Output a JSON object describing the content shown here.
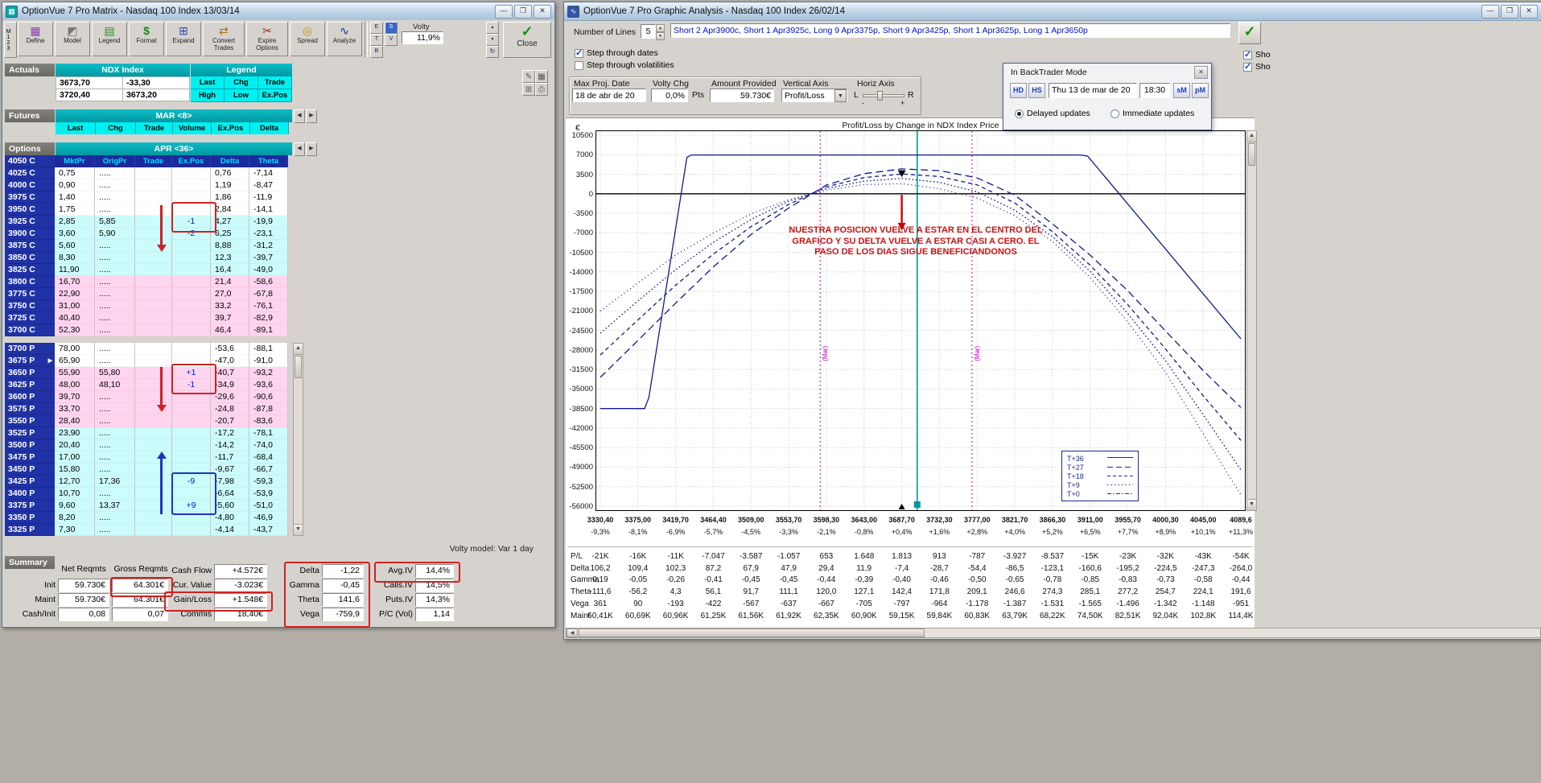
{
  "icons": {
    "define-grid-icon": "▦",
    "model-icon": "◩",
    "legend-icon": "▤",
    "format-icon": "$",
    "expand-icon": "⊞",
    "convert-trades-icon": "⇄",
    "expire-options-icon": "✂",
    "spread-icon": "◎",
    "analyze-icon": "∿",
    "check-icon": "✓",
    "close-x-icon": "✕",
    "minimize-icon": "—",
    "maximize-icon": "❐",
    "left-icon": "◀",
    "right-icon": "▶",
    "up-icon": "▲",
    "down-icon": "▼",
    "pencil-icon": "✎",
    "palette-icon": "▦",
    "calc-icon": "⊞",
    "print-icon": "⎙",
    "refresh-icon": "↻",
    "dropdown-icon": "▼",
    "marker-icon": "▸"
  },
  "matrix": {
    "title": "OptionVue 7 Pro Matrix - Nasdaq 100 Index 13/03/14",
    "toolbar": {
      "buttons": [
        {
          "label": "Define",
          "icon": "define-grid-icon"
        },
        {
          "label": "Model",
          "icon": "model-icon"
        },
        {
          "label": "Legend",
          "icon": "legend-icon"
        },
        {
          "label": "Format",
          "icon": "format-icon"
        },
        {
          "label": "Expand",
          "icon": "expand-icon"
        },
        {
          "label": "Convert Trades",
          "icon": "convert-trades-icon",
          "wide": true
        },
        {
          "label": "Expire Options",
          "icon": "expire-options-icon",
          "wide": true
        },
        {
          "label": "Spread",
          "icon": "spread-icon"
        },
        {
          "label": "Analyze",
          "icon": "analyze-icon"
        }
      ],
      "m123": "M123",
      "mini_letters": [
        "E",
        "T",
        "B"
      ],
      "sv_buttons": [
        "S",
        "V"
      ],
      "volty_label": "Volty",
      "volty_value": "11,9%",
      "close_label": "Close"
    },
    "actuals": {
      "section_label": "Actuals",
      "index_header": "NDX Index",
      "legend_header": "Legend",
      "last": "3673,70",
      "chg": "-33,30",
      "high": "3720,40",
      "low": "3673,20",
      "legend_cells": [
        "Last",
        "Chg",
        "Trade",
        "High",
        "Low",
        "Ex.Pos"
      ]
    },
    "futures": {
      "section_label": "Futures",
      "month": "MAR <8>",
      "columns": [
        "Last",
        "Chg",
        "Trade",
        "Volume",
        "Ex.Pos",
        "Delta"
      ]
    },
    "options": {
      "section_label": "Options",
      "month": "APR <36>",
      "top_strike": "4050 C",
      "columns": [
        "MktPr",
        "OrigPr",
        "Trade",
        "Ex.Pos",
        "Delta",
        "Theta"
      ],
      "calls": [
        {
          "strike": "4025 C",
          "mkt": "0,75",
          "orig": ".....",
          "trade": "",
          "expos": "",
          "delta": "0,76",
          "theta": "-7,14",
          "zone": "w"
        },
        {
          "strike": "4000 C",
          "mkt": "0,90",
          "orig": ".....",
          "trade": "",
          "expos": "",
          "delta": "1,19",
          "theta": "-8,47",
          "zone": "w"
        },
        {
          "strike": "3975 C",
          "mkt": "1,40",
          "orig": ".....",
          "trade": "",
          "expos": "",
          "delta": "1,86",
          "theta": "-11,9",
          "zone": "w"
        },
        {
          "strike": "3950 C",
          "mkt": "1,75",
          "orig": ".....",
          "trade": "",
          "expos": "",
          "delta": "2,84",
          "theta": "-14,1",
          "zone": "w"
        },
        {
          "strike": "3925 C",
          "mkt": "2,85",
          "orig": "5,85",
          "trade": "",
          "expos": "-1",
          "delta": "4,27",
          "theta": "-19,9",
          "zone": "c"
        },
        {
          "strike": "3900 C",
          "mkt": "3,60",
          "orig": "5,90",
          "trade": "",
          "expos": "-2",
          "delta": "6,25",
          "theta": "-23,1",
          "zone": "c"
        },
        {
          "strike": "3875 C",
          "mkt": "5,60",
          "orig": ".....",
          "trade": "",
          "expos": "",
          "delta": "8,88",
          "theta": "-31,2",
          "zone": "c"
        },
        {
          "strike": "3850 C",
          "mkt": "8,30",
          "orig": ".....",
          "trade": "",
          "expos": "",
          "delta": "12,3",
          "theta": "-39,7",
          "zone": "c"
        },
        {
          "strike": "3825 C",
          "mkt": "11,90",
          "orig": ".....",
          "trade": "",
          "expos": "",
          "delta": "16,4",
          "theta": "-49,0",
          "zone": "c"
        },
        {
          "strike": "3800 C",
          "mkt": "16,70",
          "orig": ".....",
          "trade": "",
          "expos": "",
          "delta": "21,4",
          "theta": "-58,6",
          "zone": "p"
        },
        {
          "strike": "3775 C",
          "mkt": "22,90",
          "orig": ".....",
          "trade": "",
          "expos": "",
          "delta": "27,0",
          "theta": "-67,8",
          "zone": "p"
        },
        {
          "strike": "3750 C",
          "mkt": "31,00",
          "orig": ".....",
          "trade": "",
          "expos": "",
          "delta": "33,2",
          "theta": "-76,1",
          "zone": "p"
        },
        {
          "strike": "3725 C",
          "mkt": "40,40",
          "orig": ".....",
          "trade": "",
          "expos": "",
          "delta": "39,7",
          "theta": "-82,9",
          "zone": "p"
        },
        {
          "strike": "3700 C",
          "mkt": "52,30",
          "orig": ".....",
          "trade": "",
          "expos": "",
          "delta": "46,4",
          "theta": "-89,1",
          "zone": "p"
        }
      ],
      "puts": [
        {
          "strike": "3700 P",
          "mkt": "78,00",
          "orig": ".....",
          "trade": "",
          "expos": "",
          "delta": "-53,6",
          "theta": "-88,1",
          "zone": "w"
        },
        {
          "strike": "3675 P",
          "marker": true,
          "mkt": "65,90",
          "orig": ".....",
          "trade": "",
          "expos": "",
          "delta": "-47,0",
          "theta": "-91,0",
          "zone": "w"
        },
        {
          "strike": "3650 P",
          "mkt": "55,90",
          "orig": "55,80",
          "trade": "",
          "expos": "+1",
          "delta": "-40,7",
          "theta": "-93,2",
          "zone": "p"
        },
        {
          "strike": "3625 P",
          "mkt": "48,00",
          "orig": "48,10",
          "trade": "",
          "expos": "-1",
          "delta": "-34,9",
          "theta": "-93,6",
          "zone": "p"
        },
        {
          "strike": "3600 P",
          "mkt": "39,70",
          "orig": ".....",
          "trade": "",
          "expos": "",
          "delta": "-29,6",
          "theta": "-90,6",
          "zone": "p"
        },
        {
          "strike": "3575 P",
          "mkt": "33,70",
          "orig": ".....",
          "trade": "",
          "expos": "",
          "delta": "-24,8",
          "theta": "-87,8",
          "zone": "p"
        },
        {
          "strike": "3550 P",
          "mkt": "28,40",
          "orig": ".....",
          "trade": "",
          "expos": "",
          "delta": "-20,7",
          "theta": "-83,6",
          "zone": "p"
        },
        {
          "strike": "3525 P",
          "mkt": "23,90",
          "orig": ".....",
          "trade": "",
          "expos": "",
          "delta": "-17,2",
          "theta": "-78,1",
          "zone": "c"
        },
        {
          "strike": "3500 P",
          "mkt": "20,40",
          "orig": ".....",
          "trade": "",
          "expos": "",
          "delta": "-14,2",
          "theta": "-74,0",
          "zone": "c"
        },
        {
          "strike": "3475 P",
          "mkt": "17,00",
          "orig": ".....",
          "trade": "",
          "expos": "",
          "delta": "-11,7",
          "theta": "-68,4",
          "zone": "c"
        },
        {
          "strike": "3450 P",
          "mkt": "15,80",
          "orig": ".....",
          "trade": "",
          "expos": "",
          "delta": "-9,67",
          "theta": "-66,7",
          "zone": "c"
        },
        {
          "strike": "3425 P",
          "mkt": "12,70",
          "orig": "17,36",
          "trade": "",
          "expos": "-9",
          "delta": "-7,98",
          "theta": "-59,3",
          "zone": "c"
        },
        {
          "strike": "3400 P",
          "mkt": "10,70",
          "orig": ".....",
          "trade": "",
          "expos": "",
          "delta": "-6,64",
          "theta": "-53,9",
          "zone": "c"
        },
        {
          "strike": "3375 P",
          "mkt": "9,60",
          "orig": "13,37",
          "trade": "",
          "expos": "+9",
          "delta": "-5,60",
          "theta": "-51,0",
          "zone": "c"
        },
        {
          "strike": "3350 P",
          "mkt": "8,20",
          "orig": ".....",
          "trade": "",
          "expos": "",
          "delta": "-4,80",
          "theta": "-46,9",
          "zone": "c"
        },
        {
          "strike": "3325 P",
          "mkt": "7,30",
          "orig": ".....",
          "trade": "",
          "expos": "",
          "delta": "-4,14",
          "theta": "-43,7",
          "zone": "c"
        }
      ]
    },
    "summary": {
      "label": "Summary",
      "volty_model": "Volty model: Var 1 day",
      "reqmts": {
        "col1": "Net Reqmts",
        "col2": "Gross Reqmts",
        "rows": [
          {
            "label": "Init",
            "net": "59.730€",
            "gross": "64.301€"
          },
          {
            "label": "Maint",
            "net": "59.730€",
            "gross": "64.301€"
          },
          {
            "label": "Cash/Init",
            "net": "0,08",
            "gross": "0,07"
          }
        ]
      },
      "cash": [
        {
          "label": "Cash Flow",
          "value": "+4.572€"
        },
        {
          "label": "Cur. Value",
          "value": "-3.023€"
        },
        {
          "label": "Gain/Loss",
          "value": "+1.548€"
        },
        {
          "label": "Commis",
          "value": "18,40€"
        }
      ],
      "greeks": [
        {
          "label": "Delta",
          "value": "-1,22"
        },
        {
          "label": "Gamma",
          "value": "-0,45"
        },
        {
          "label": "Theta",
          "value": "141,6"
        },
        {
          "label": "Vega",
          "value": "-759,9"
        }
      ],
      "iv": [
        {
          "label": "Avg.IV",
          "value": "14,4%"
        },
        {
          "label": "Calls.IV",
          "value": "14,5%"
        },
        {
          "label": "Puts.IV",
          "value": "14,3%"
        },
        {
          "label": "P/C (Vol)",
          "value": "1,14"
        }
      ]
    }
  },
  "graphic": {
    "title": "OptionVue 7 Pro Graphic Analysis - Nasdaq 100 Index 26/02/14",
    "controls": {
      "number_of_lines_label": "Number of Lines",
      "number_of_lines_value": "5",
      "position_text": "Short 2 Apr3900c, Short 1 Apr3925c, Long 9 Apr3375p, Short 9 Apr3425p, Short 1 Apr3625p, Long 1 Apr3650p",
      "step_dates_label": "Step through dates",
      "step_vol_label": "Step through volatilities",
      "max_proj_label": "Max Proj. Date",
      "max_proj_value": "18 de abr de 20",
      "volty_chg_label": "Volty Chg",
      "volty_chg_value": "0,0%",
      "pts_label": "Pts",
      "amount_label": "Amount Provided",
      "amount_value": "59.730€",
      "vaxis_label": "Vertical Axis",
      "vaxis_value": "Profit/Loss",
      "haxis_label": "Horiz Axis",
      "haxis_left": "L",
      "haxis_right": "R",
      "haxis_minus": "-",
      "haxis_plus": "+",
      "side_checks": [
        "Sho",
        "Sho"
      ]
    },
    "backtrader": {
      "title": "In BackTrader Mode",
      "btn1": "HD",
      "btn2": "HS",
      "date": "Thu 13 de mar de 20",
      "time": "18:30",
      "btn3": "sM",
      "btn4": "pM",
      "radio1": "Delayed updates",
      "radio2": "Immediate updates"
    },
    "annotation": "NUESTRA POSICION VUELVE A ESTAR EN EL CENTRO DEL GRAFICO Y SU DELTA VUELVE A ESTAR CASI A CERO. EL PASO DE LOS DIAS SIGUE BENEFICIANDONOS",
    "chart_data": {
      "type": "line",
      "title": "Profit/Loss by Change in NDX Index Price",
      "y_unit": "€",
      "ylim": [
        -56000,
        10500
      ],
      "y_tick_step": 3500,
      "x_ticks": [
        3330.4,
        3375.0,
        3419.7,
        3464.4,
        3509.0,
        3553.7,
        3598.3,
        3643.0,
        3687.7,
        3732.3,
        3777.0,
        3821.7,
        3866.3,
        3911.0,
        3955.7,
        4000.3,
        4045.0,
        4089.6
      ],
      "x_tick_labels": [
        "3330,40",
        "3375,00",
        "3419,70",
        "3464,40",
        "3509,00",
        "3553,70",
        "3598,30",
        "3643,00",
        "3687,70",
        "3732,30",
        "3777,00",
        "3821,70",
        "3866,30",
        "3911,00",
        "3955,70",
        "4000,30",
        "4045,00",
        "4089,6"
      ],
      "pct_labels": [
        "-9,3%",
        "-8,1%",
        "-6,9%",
        "-5,7%",
        "-4,5%",
        "-3,3%",
        "-2,1%",
        "-0,8%",
        "+0,4%",
        "+1,6%",
        "+2,8%",
        "+4,0%",
        "+5,2%",
        "+6,5%",
        "+7,7%",
        "+8,9%",
        "+10,1%",
        "+11,3%"
      ],
      "series": [
        {
          "name": "T+36",
          "style": "solid",
          "points": [
            [
              3330.4,
              -38500
            ],
            [
              3383,
              -38500
            ],
            [
              3388,
              -36500
            ],
            [
              3433,
              6500
            ],
            [
              3438,
              6950
            ],
            [
              3900,
              6950
            ],
            [
              3908,
              6750
            ],
            [
              4089.6,
              -26000
            ]
          ]
        },
        {
          "name": "T+27",
          "style": "dashlong",
          "values": [
            -32900,
            -26300,
            -19600,
            -13100,
            -7300,
            -2550,
            1550,
            3600,
            4450,
            4150,
            2850,
            -250,
            -5400,
            -11000,
            -17400,
            -24600,
            -31700,
            -38300
          ]
        },
        {
          "name": "T+18",
          "style": "dash",
          "values": [
            -28900,
            -22600,
            -16400,
            -10800,
            -5900,
            -1900,
            1250,
            2900,
            3550,
            3100,
            1600,
            -1650,
            -6800,
            -12800,
            -19900,
            -27800,
            -36200,
            -44200
          ]
        },
        {
          "name": "T+9",
          "style": "dot",
          "values": [
            -25000,
            -19200,
            -13600,
            -8700,
            -4600,
            -1350,
            950,
            2250,
            2750,
            2050,
            350,
            -2950,
            -7700,
            -13900,
            -21500,
            -29900,
            -39600,
            -49500
          ]
        },
        {
          "name": "T+0",
          "style": "dashdot",
          "values": [
            -21000,
            -16000,
            -11000,
            -7047,
            -3587,
            -1057,
            653,
            1648,
            1813,
            913,
            -787,
            -3927,
            -8537,
            -15000,
            -23000,
            -32000,
            -43000,
            -54000
          ]
        }
      ],
      "legend": [
        {
          "label": "T+36",
          "style": "solid"
        },
        {
          "label": "T+27",
          "style": "dashlong"
        },
        {
          "label": "T+18",
          "style": "dash"
        },
        {
          "label": "T+9",
          "style": "dot"
        },
        {
          "label": "T+0",
          "style": "dashdot"
        }
      ],
      "sd_markers": [
        {
          "x": 3591,
          "label": "(Mar)"
        },
        {
          "x": 3771,
          "label": "(Mar)"
        }
      ],
      "current_line_x": 3706,
      "pointer_x": 3687.7,
      "grid": true,
      "legend_position": "lower-right"
    },
    "stats": {
      "rows": [
        {
          "label": "P/L",
          "values": [
            "-21K",
            "-16K",
            "-11K",
            "-7.047",
            "-3.587",
            "-1.057",
            "653",
            "1.648",
            "1.813",
            "913",
            "-787",
            "-3.927",
            "-8.537",
            "-15K",
            "-23K",
            "-32K",
            "-43K",
            "-54K"
          ]
        },
        {
          "label": "Delta",
          "values": [
            "106,2",
            "109,4",
            "102,3",
            "87,2",
            "67,9",
            "47,9",
            "29,4",
            "11,9",
            "-7,4",
            "-28,7",
            "-54,4",
            "-86,5",
            "-123,1",
            "-160,6",
            "-195,2",
            "-224,5",
            "-247,3",
            "-264,0"
          ]
        },
        {
          "label": "Gamma",
          "values": [
            "0,19",
            "-0,05",
            "-0,26",
            "-0,41",
            "-0,45",
            "-0,45",
            "-0,44",
            "-0,39",
            "-0,40",
            "-0,46",
            "-0,50",
            "-0,65",
            "-0,78",
            "-0,85",
            "-0,83",
            "-0,73",
            "-0,58",
            "-0,44"
          ]
        },
        {
          "label": "Theta",
          "values": [
            "-111,6",
            "-56,2",
            "4,3",
            "56,1",
            "91,7",
            "111,1",
            "120,0",
            "127,1",
            "142,4",
            "171,8",
            "209,1",
            "246,6",
            "274,3",
            "285,1",
            "277,2",
            "254,7",
            "224,1",
            "191,6"
          ]
        },
        {
          "label": "Vega",
          "values": [
            "361",
            "90",
            "-193",
            "-422",
            "-567",
            "-637",
            "-667",
            "-705",
            "-797",
            "-964",
            "-1.178",
            "-1.387",
            "-1.531",
            "-1.565",
            "-1.496",
            "-1.342",
            "-1.148",
            "-951"
          ]
        },
        {
          "label": "Maint",
          "values": [
            "60,41K",
            "60,69K",
            "60,96K",
            "61,25K",
            "61,56K",
            "61,92K",
            "62,35K",
            "60,90K",
            "59,15K",
            "59,84K",
            "60,83K",
            "63,79K",
            "68,22K",
            "74,50K",
            "82,51K",
            "92,04K",
            "102,8K",
            "114,4K"
          ]
        }
      ]
    }
  }
}
